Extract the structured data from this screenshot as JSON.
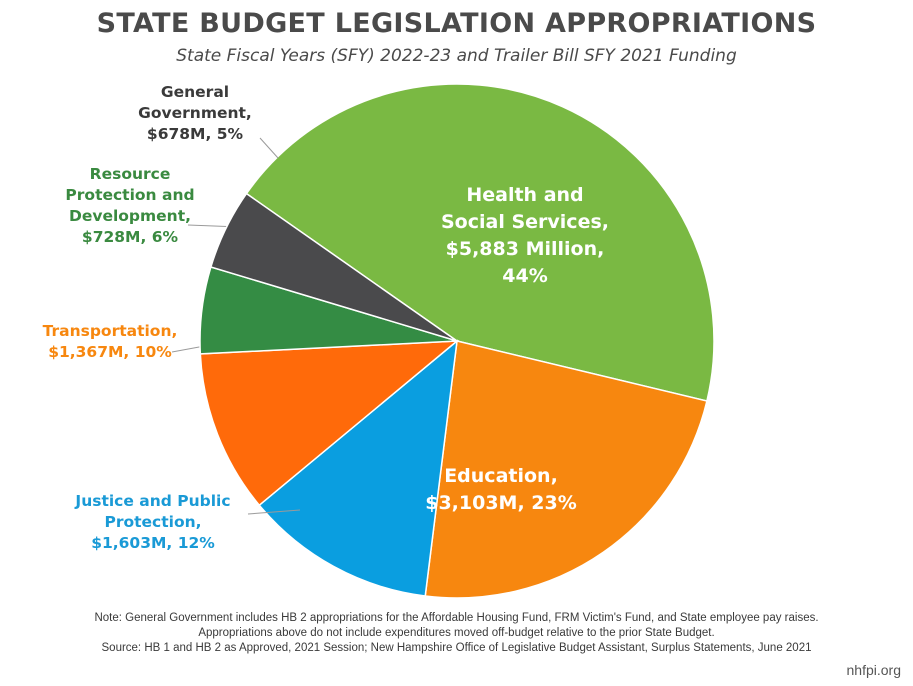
{
  "chart_data": {
    "type": "pie",
    "title": "STATE BUDGET LEGISLATION APPROPRIATIONS",
    "subtitle": "State Fiscal Years (SFY) 2022-23 and Trailer Bill SFY 2021 Funding",
    "slices": [
      {
        "name": "Health and Social Services",
        "value": 5883,
        "percent": 44,
        "color": "#7ab943",
        "label_lines": [
          "Health and",
          "Social Services,",
          "$5,883 Million,",
          "44%"
        ]
      },
      {
        "name": "Education",
        "value": 3103,
        "percent": 23,
        "color": "#f7870f",
        "label_lines": [
          "Education,",
          "$3,103M, 23%"
        ]
      },
      {
        "name": "Justice and Public Protection",
        "value": 1603,
        "percent": 12,
        "color": "#0a9ee0",
        "label_lines": [
          "Justice and Public",
          "Protection,",
          "$1,603M, 12%"
        ]
      },
      {
        "name": "Transportation",
        "value": 1367,
        "percent": 10,
        "color": "#ff6a0a",
        "label_lines": [
          "Transportation,",
          "$1,367M, 10%"
        ]
      },
      {
        "name": "Resource Protection and Development",
        "value": 728,
        "percent": 6,
        "color": "#348c44",
        "label_lines": [
          "Resource",
          "Protection and",
          "Development,",
          "$728M, 6%"
        ]
      },
      {
        "name": "General Government",
        "value": 678,
        "percent": 5,
        "color": "#4a4a4c",
        "label_lines": [
          "General",
          "Government,",
          "$678M, 5%"
        ]
      }
    ],
    "label_colors": {
      "Justice and Public Protection": "#1a9ad6",
      "Transportation": "#f7870f",
      "Resource Protection and Development": "#3a8a40",
      "General Government": "#3a3a3a"
    }
  },
  "notes": [
    "Note: General Government includes HB 2 appropriations for the Affordable Housing Fund, FRM Victim's Fund, and State employee pay raises.",
    "Appropriations above do not include expenditures moved off-budget relative to the prior State Budget.",
    "Source: HB 1 and HB 2 as Approved, 2021 Session; New Hampshire Office of Legislative Budget Assistant, Surplus Statements, June 2021"
  ],
  "footer": "nhfpi.org"
}
